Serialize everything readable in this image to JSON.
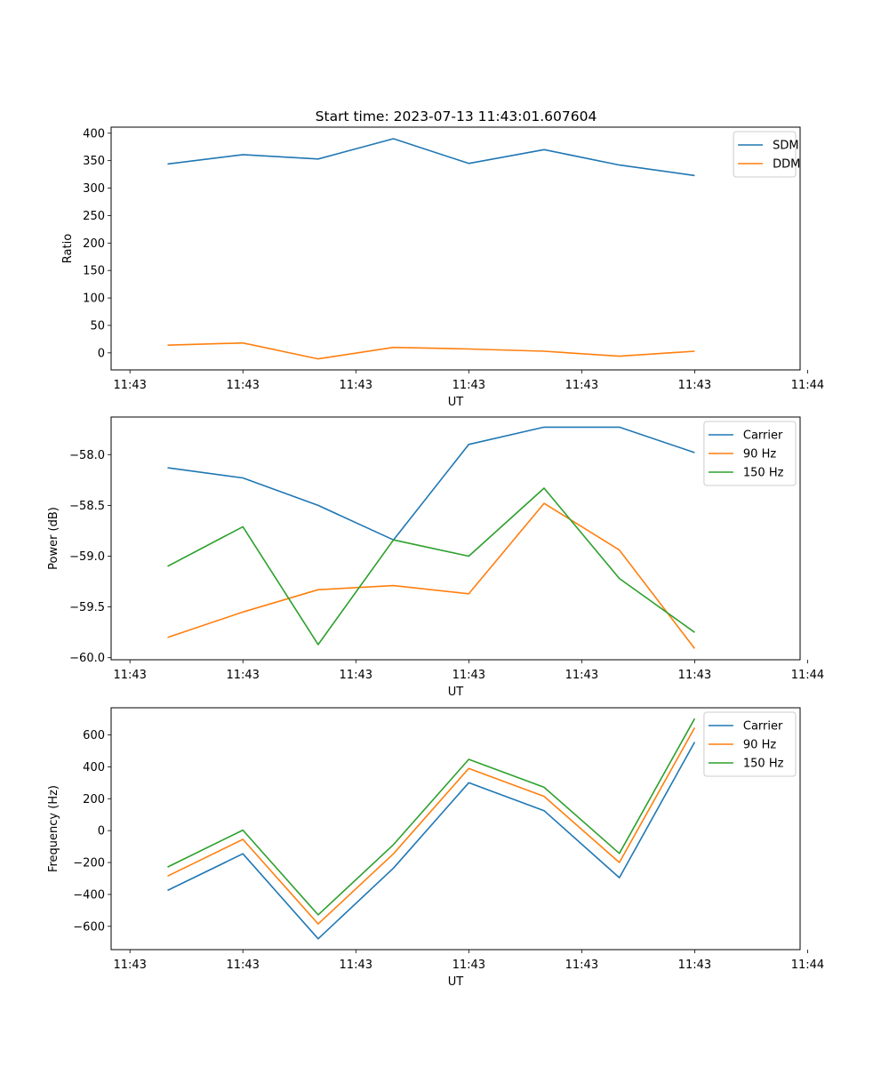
{
  "figure": {
    "title": "Start time: 2023-07-13 11:43:01.607604"
  },
  "chart_data": [
    {
      "type": "line",
      "title": "",
      "xlabel": "UT",
      "ylabel": "Ratio",
      "x": [
        1,
        2,
        3,
        4,
        5,
        6,
        7,
        8
      ],
      "xlim": [
        0.25,
        9.4
      ],
      "ylim": [
        -31,
        411
      ],
      "xticks": [
        0.5,
        2,
        3.5,
        5,
        6.5,
        8,
        9.5
      ],
      "xticklabels": [
        "11:43",
        "11:43",
        "11:43",
        "11:43",
        "11:43",
        "11:43",
        "11:44"
      ],
      "yticks": [
        0,
        50,
        100,
        150,
        200,
        250,
        300,
        350,
        400
      ],
      "ytick_format": "int",
      "legend": "top-right",
      "series": [
        {
          "name": "SDM",
          "color": "#1f77b4",
          "values": [
            344,
            361,
            353,
            390,
            345,
            370,
            342,
            323
          ]
        },
        {
          "name": "DDM",
          "color": "#ff7f0e",
          "values": [
            14,
            18,
            -11,
            10,
            7,
            3,
            -6,
            3
          ]
        }
      ]
    },
    {
      "type": "line",
      "title": "",
      "xlabel": "UT",
      "ylabel": "Power (dB)",
      "x": [
        1,
        2,
        3,
        4,
        5,
        6,
        7,
        8
      ],
      "xlim": [
        0.25,
        9.4
      ],
      "ylim": [
        -60.02,
        -57.63
      ],
      "xticks": [
        0.5,
        2,
        3.5,
        5,
        6.5,
        8,
        9.5
      ],
      "xticklabels": [
        "11:43",
        "11:43",
        "11:43",
        "11:43",
        "11:43",
        "11:43",
        "11:44"
      ],
      "yticks": [
        -60.0,
        -59.5,
        -59.0,
        -58.5,
        -58.0
      ],
      "ytick_format": "fixed1",
      "legend": "top-right",
      "series": [
        {
          "name": "Carrier",
          "color": "#1f77b4",
          "values": [
            -58.13,
            -58.23,
            -58.5,
            -58.84,
            -57.9,
            -57.73,
            -57.73,
            -57.98
          ]
        },
        {
          "name": "90 Hz",
          "color": "#ff7f0e",
          "values": [
            -59.8,
            -59.55,
            -59.33,
            -59.29,
            -59.37,
            -58.48,
            -58.94,
            -59.91
          ]
        },
        {
          "name": "150 Hz",
          "color": "#2ca02c",
          "values": [
            -59.1,
            -58.71,
            -59.87,
            -58.84,
            -59.0,
            -58.33,
            -59.22,
            -59.75
          ]
        }
      ]
    },
    {
      "type": "line",
      "title": "",
      "xlabel": "UT",
      "ylabel": "Frequency (Hz)",
      "x": [
        1,
        2,
        3,
        4,
        5,
        6,
        7,
        8
      ],
      "xlim": [
        0.25,
        9.4
      ],
      "ylim": [
        -746,
        770
      ],
      "xticks": [
        0.5,
        2,
        3.5,
        5,
        6.5,
        8,
        9.5
      ],
      "xticklabels": [
        "11:43",
        "11:43",
        "11:43",
        "11:43",
        "11:43",
        "11:43",
        "11:44"
      ],
      "yticks": [
        -600,
        -400,
        -200,
        0,
        200,
        400,
        600
      ],
      "ytick_format": "int",
      "legend": "top-right",
      "series": [
        {
          "name": "Carrier",
          "color": "#1f77b4",
          "values": [
            -375,
            -145,
            -678,
            -235,
            300,
            125,
            -295,
            555
          ]
        },
        {
          "name": "90 Hz",
          "color": "#ff7f0e",
          "values": [
            -285,
            -55,
            -585,
            -145,
            390,
            215,
            -200,
            645
          ]
        },
        {
          "name": "150 Hz",
          "color": "#2ca02c",
          "values": [
            -228,
            3,
            -528,
            -88,
            447,
            272,
            -143,
            702
          ]
        }
      ]
    }
  ]
}
